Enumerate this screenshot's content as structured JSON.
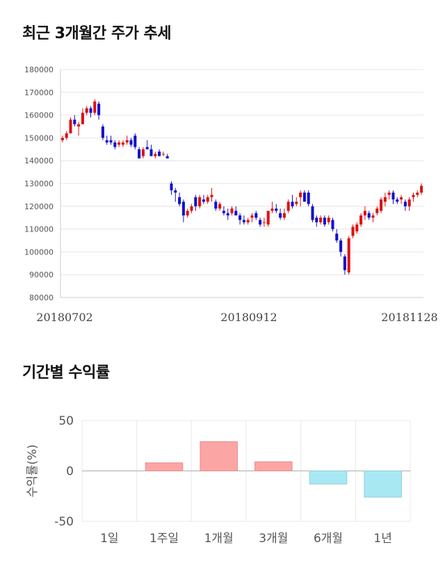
{
  "sections": {
    "price_title": "최근 3개월간 주가 추세",
    "return_title": "기간별 수익률"
  },
  "chart_data": [
    {
      "type": "candlestick",
      "title": "최근 3개월간 주가 추세",
      "ylim": [
        80000,
        180000
      ],
      "y_ticks": [
        80000,
        90000,
        100000,
        110000,
        120000,
        130000,
        140000,
        150000,
        160000,
        170000,
        180000
      ],
      "x_tick_labels": [
        "20180702",
        "20180912",
        "20181128"
      ],
      "grid": true,
      "up_color": "#dd1111",
      "down_color": "#1111cc",
      "candles": [
        [
          149000,
          151000,
          148000,
          150000
        ],
        [
          150000,
          153000,
          149000,
          152000
        ],
        [
          152000,
          159000,
          152000,
          158000
        ],
        [
          158000,
          160000,
          155000,
          156000
        ],
        [
          155000,
          157000,
          151000,
          156000
        ],
        [
          156000,
          163000,
          156000,
          161000
        ],
        [
          161000,
          164000,
          160000,
          163000
        ],
        [
          163000,
          164000,
          159000,
          161000
        ],
        [
          161000,
          167000,
          160000,
          166000
        ],
        [
          165000,
          166000,
          158000,
          160000
        ],
        [
          155000,
          156000,
          149000,
          150000
        ],
        [
          149000,
          151000,
          147000,
          148000
        ],
        [
          149000,
          151000,
          147000,
          148000
        ],
        [
          148000,
          149000,
          145000,
          146000
        ],
        [
          147000,
          149000,
          146000,
          148000
        ],
        [
          147000,
          149000,
          146000,
          148000
        ],
        [
          148000,
          151000,
          147000,
          149000
        ],
        [
          149000,
          150000,
          146000,
          147000
        ],
        [
          151000,
          152000,
          145000,
          146000
        ],
        [
          145000,
          146000,
          141000,
          141000
        ],
        [
          142000,
          146000,
          141000,
          145000
        ],
        [
          146000,
          149000,
          145000,
          145000
        ],
        [
          145000,
          147000,
          142000,
          142000
        ],
        [
          142000,
          144000,
          141000,
          143000
        ],
        [
          144000,
          145000,
          142000,
          142000
        ],
        [
          143000,
          144000,
          142000,
          143000
        ],
        [
          142000,
          143000,
          141000,
          141000
        ],
        [
          130000,
          131000,
          125000,
          127000
        ],
        [
          127000,
          128000,
          122000,
          126000
        ],
        [
          124000,
          126000,
          120000,
          121000
        ],
        [
          122000,
          123000,
          113000,
          116000
        ],
        [
          116000,
          119000,
          115000,
          118000
        ],
        [
          118000,
          121000,
          117000,
          120000
        ],
        [
          124000,
          125000,
          118000,
          120000
        ],
        [
          120000,
          125000,
          119000,
          124000
        ],
        [
          123000,
          125000,
          121000,
          122000
        ],
        [
          122000,
          125000,
          121000,
          124000
        ],
        [
          124000,
          128000,
          122000,
          125000
        ],
        [
          122000,
          123000,
          118000,
          119000
        ],
        [
          119000,
          122000,
          118000,
          121000
        ],
        [
          118000,
          120000,
          116000,
          117000
        ],
        [
          117000,
          119000,
          114000,
          116000
        ],
        [
          117000,
          120000,
          116000,
          119000
        ],
        [
          118000,
          120000,
          116000,
          116000
        ],
        [
          116000,
          117000,
          112000,
          114000
        ],
        [
          114000,
          116000,
          112000,
          113000
        ],
        [
          113000,
          115000,
          112000,
          114000
        ],
        [
          115000,
          117000,
          113000,
          116000
        ],
        [
          117000,
          118000,
          114000,
          115000
        ],
        [
          114000,
          115000,
          111000,
          112000
        ],
        [
          113000,
          115000,
          111000,
          113000
        ],
        [
          112000,
          118000,
          111000,
          118000
        ],
        [
          118000,
          122000,
          117000,
          119000
        ],
        [
          119000,
          121000,
          117000,
          118000
        ],
        [
          117000,
          119000,
          114000,
          115000
        ],
        [
          115000,
          119000,
          114000,
          117000
        ],
        [
          118000,
          123000,
          117000,
          122000
        ],
        [
          122000,
          125000,
          119000,
          120000
        ],
        [
          121000,
          124000,
          120000,
          122000
        ],
        [
          124000,
          127000,
          120000,
          126000
        ],
        [
          126000,
          127000,
          122000,
          122000
        ],
        [
          126000,
          127000,
          120000,
          121000
        ],
        [
          120000,
          121000,
          113000,
          114000
        ],
        [
          115000,
          116000,
          111000,
          113000
        ],
        [
          113000,
          116000,
          112000,
          115000
        ],
        [
          115000,
          116000,
          111000,
          112000
        ],
        [
          113000,
          116000,
          112000,
          115000
        ],
        [
          114000,
          115000,
          109000,
          110000
        ],
        [
          108000,
          110000,
          104000,
          105000
        ],
        [
          105000,
          106000,
          98000,
          100000
        ],
        [
          98000,
          99000,
          90000,
          92000
        ],
        [
          91000,
          107000,
          90000,
          106000
        ],
        [
          107000,
          112000,
          106000,
          111000
        ],
        [
          109000,
          113000,
          108000,
          112000
        ],
        [
          112000,
          117000,
          111000,
          116000
        ],
        [
          116000,
          120000,
          114000,
          118000
        ],
        [
          117000,
          118000,
          114000,
          115000
        ],
        [
          115000,
          117000,
          113000,
          116000
        ],
        [
          117000,
          120000,
          116000,
          119000
        ],
        [
          118000,
          124000,
          117000,
          123000
        ],
        [
          122000,
          126000,
          120000,
          124000
        ],
        [
          125000,
          127000,
          123000,
          126000
        ],
        [
          126000,
          127000,
          121000,
          123000
        ],
        [
          123000,
          124000,
          121000,
          122000
        ],
        [
          123000,
          125000,
          121000,
          124000
        ],
        [
          122000,
          123000,
          118000,
          120000
        ],
        [
          120000,
          124000,
          118000,
          123000
        ],
        [
          124000,
          126000,
          122000,
          125000
        ],
        [
          125000,
          127000,
          124000,
          126000
        ],
        [
          126000,
          130000,
          125000,
          129000
        ]
      ]
    },
    {
      "type": "bar",
      "categories": [
        "1일",
        "1주일",
        "1개월",
        "3개월",
        "6개월",
        "1년"
      ],
      "values": [
        0,
        8,
        29,
        9,
        -13,
        -26
      ],
      "ylabel": "수익률(%)",
      "ylim": [
        -50,
        50
      ],
      "y_ticks": [
        -50,
        0,
        50
      ],
      "positive_color": "#fca5a5",
      "negative_color": "#a8e8f2",
      "grid": true
    }
  ]
}
